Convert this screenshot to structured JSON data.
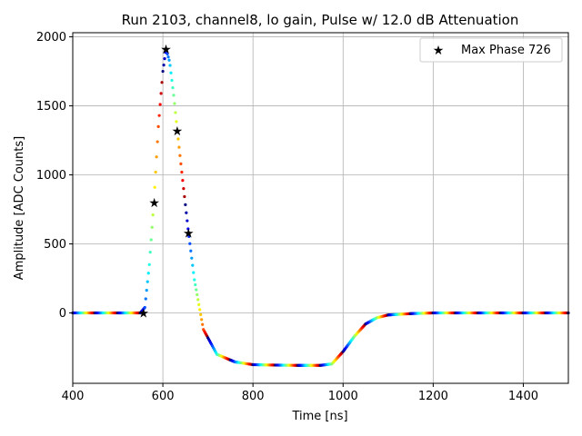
{
  "chart_data": {
    "type": "scatter",
    "title": "Run 2103, channel8, lo gain, Pulse w/ 12.0 dB Attenuation",
    "xlabel": "Time [ns]",
    "ylabel": "Amplitude [ADC Counts]",
    "xlim": [
      400,
      1500
    ],
    "ylim": [
      -510,
      2030
    ],
    "xticks": [
      400,
      600,
      800,
      1000,
      1200,
      1400
    ],
    "yticks": [
      0,
      500,
      1000,
      1500,
      2000
    ],
    "grid": true,
    "colormap": "jet",
    "legend": {
      "placement": "top-right",
      "entries": [
        "Max Phase 726"
      ]
    },
    "pulse_curve": {
      "x": [
        400,
        550,
        560,
        570,
        580,
        590,
        600,
        607,
        615,
        625,
        632,
        645,
        657,
        670,
        690,
        720,
        760,
        800,
        850,
        900,
        950,
        975,
        1000,
        1025,
        1050,
        1075,
        1100,
        1150,
        1200,
        1300,
        1500
      ],
      "y": [
        0,
        0,
        40,
        350,
        800,
        1350,
        1750,
        1910,
        1820,
        1550,
        1320,
        930,
        580,
        240,
        -120,
        -300,
        -355,
        -375,
        -378,
        -380,
        -380,
        -370,
        -280,
        -170,
        -80,
        -35,
        -15,
        -5,
        0,
        0,
        0
      ]
    },
    "series": [
      {
        "name": "Max Phase 726",
        "x": [
          557,
          581,
          607,
          632,
          657
        ],
        "y": [
          0,
          800,
          1910,
          1320,
          580
        ]
      }
    ]
  }
}
